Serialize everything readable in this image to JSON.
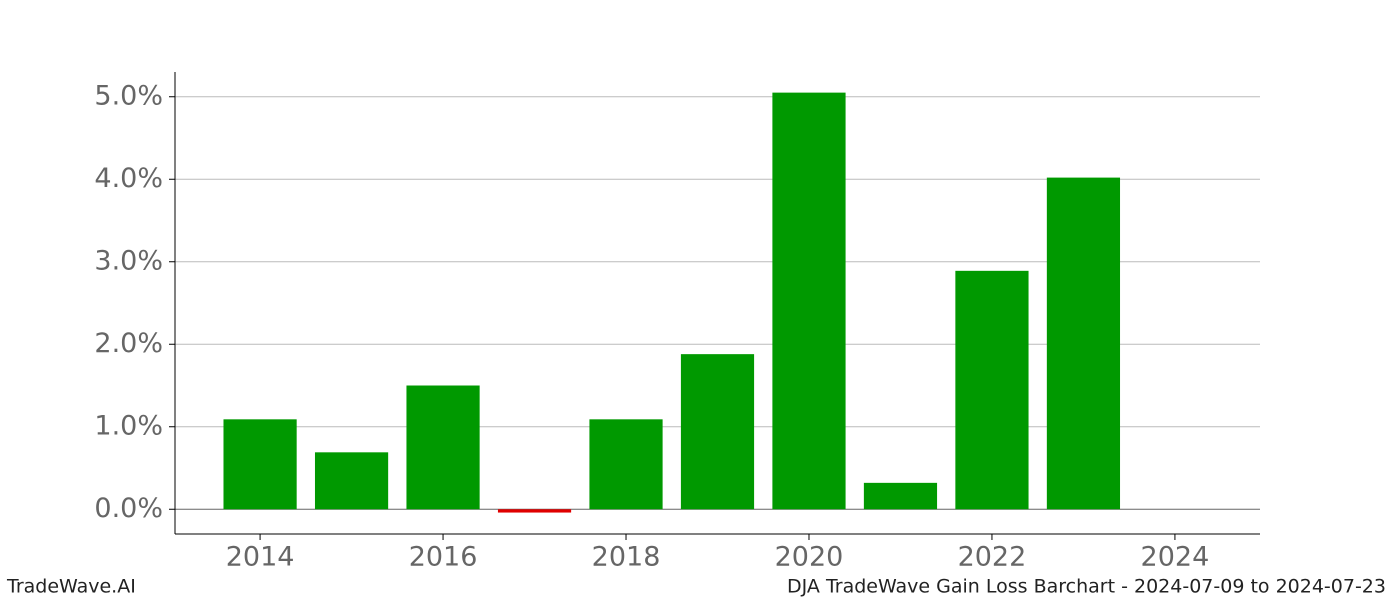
{
  "chart_data": {
    "type": "bar",
    "title": "DJA TradeWave Gain Loss Barchart - 2024-07-09 to 2024-07-23",
    "brand": "TradeWave.AI",
    "x": [
      2014,
      2015,
      2016,
      2017,
      2018,
      2019,
      2020,
      2021,
      2022,
      2023
    ],
    "values": [
      1.09,
      0.69,
      1.5,
      -0.04,
      1.09,
      1.88,
      5.05,
      0.32,
      2.89,
      4.02
    ],
    "color": "#009900",
    "negative_color": "#e00000",
    "xlim": [
      2013.07,
      2024.93
    ],
    "xticks": [
      2014,
      2016,
      2018,
      2020,
      2022,
      2024
    ],
    "ylim": [
      -0.3,
      5.3
    ],
    "yticks": [
      {
        "value": 0,
        "label": "0.0%"
      },
      {
        "value": 1,
        "label": "1.0%"
      },
      {
        "value": 2,
        "label": "2.0%"
      },
      {
        "value": 3,
        "label": "3.0%"
      },
      {
        "value": 4,
        "label": "4.0%"
      },
      {
        "value": 5,
        "label": "5.0%"
      }
    ],
    "grid": true
  }
}
